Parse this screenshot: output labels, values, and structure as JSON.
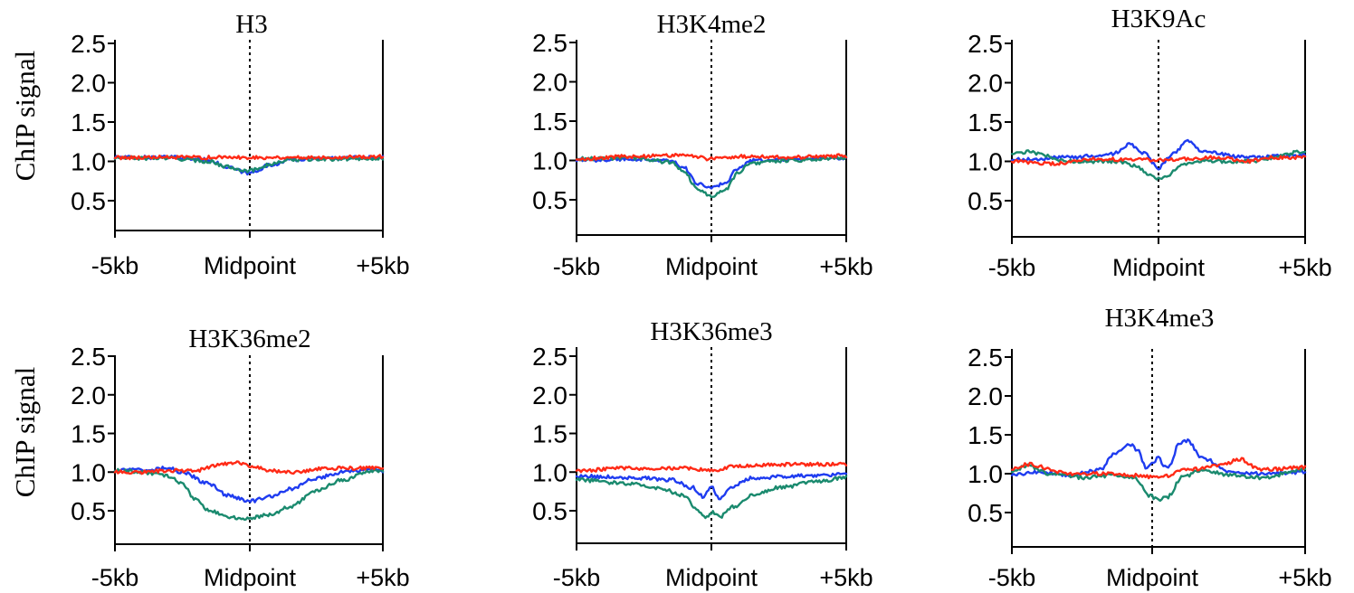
{
  "y_axis_label": "ChIP signal",
  "colors": {
    "blue": "#1f3cf0",
    "green": "#1a8a6e",
    "red": "#ff2a16"
  },
  "chart_data": [
    {
      "type": "line",
      "title": "H3",
      "xlabel": "",
      "ylabel": "ChIP signal",
      "x_ticks": [
        "-5kb",
        "Midpoint",
        "+5kb"
      ],
      "y_ticks": [
        "0.5",
        "1.0",
        "1.5",
        "2.0",
        "2.5"
      ],
      "xlim": [
        -5,
        5
      ],
      "ylim": [
        0.2,
        2.5
      ],
      "midline": 0,
      "series": [
        {
          "color": "blue",
          "points": [
            [
              -5,
              1.05
            ],
            [
              -3,
              1.05
            ],
            [
              -1.5,
              1.02
            ],
            [
              -0.8,
              0.92
            ],
            [
              0,
              0.85
            ],
            [
              0.8,
              0.95
            ],
            [
              1.5,
              1.02
            ],
            [
              3,
              1.04
            ],
            [
              5,
              1.05
            ]
          ]
        },
        {
          "color": "green",
          "points": [
            [
              -5,
              1.04
            ],
            [
              -3,
              1.04
            ],
            [
              -1.5,
              1.0
            ],
            [
              -0.8,
              0.93
            ],
            [
              0,
              0.88
            ],
            [
              0.8,
              0.96
            ],
            [
              1.5,
              1.02
            ],
            [
              3,
              1.03
            ],
            [
              5,
              1.04
            ]
          ]
        },
        {
          "color": "red",
          "points": [
            [
              -5,
              1.05
            ],
            [
              -2,
              1.05
            ],
            [
              0,
              1.05
            ],
            [
              2,
              1.05
            ],
            [
              5,
              1.06
            ]
          ]
        }
      ]
    },
    {
      "type": "line",
      "title": "H3K4me2",
      "xlabel": "",
      "ylabel": "",
      "x_ticks": [
        "-5kb",
        "Midpoint",
        "+5kb"
      ],
      "y_ticks": [
        "0.5",
        "1.0",
        "1.5",
        "2.0",
        "2.5"
      ],
      "xlim": [
        -5,
        5
      ],
      "ylim": [
        0.2,
        2.5
      ],
      "midline": 0,
      "series": [
        {
          "color": "blue",
          "points": [
            [
              -5,
              1.0
            ],
            [
              -3,
              1.02
            ],
            [
              -1.5,
              1.0
            ],
            [
              -1,
              0.9
            ],
            [
              -0.5,
              0.7
            ],
            [
              0,
              0.65
            ],
            [
              0.5,
              0.72
            ],
            [
              1,
              0.9
            ],
            [
              1.5,
              1.0
            ],
            [
              3,
              1.02
            ],
            [
              5,
              1.03
            ]
          ]
        },
        {
          "color": "green",
          "points": [
            [
              -5,
              1.02
            ],
            [
              -3,
              1.03
            ],
            [
              -1.5,
              0.98
            ],
            [
              -1,
              0.85
            ],
            [
              -0.5,
              0.62
            ],
            [
              0,
              0.55
            ],
            [
              0.5,
              0.62
            ],
            [
              1,
              0.85
            ],
            [
              1.5,
              0.97
            ],
            [
              3,
              1.0
            ],
            [
              5,
              1.04
            ]
          ]
        },
        {
          "color": "red",
          "points": [
            [
              -5,
              1.02
            ],
            [
              -3,
              1.05
            ],
            [
              -1,
              1.07
            ],
            [
              0,
              1.02
            ],
            [
              1,
              1.05
            ],
            [
              3,
              1.04
            ],
            [
              5,
              1.06
            ]
          ]
        }
      ]
    },
    {
      "type": "line",
      "title": "H3K9Ac",
      "xlabel": "",
      "ylabel": "",
      "x_ticks": [
        "-5kb",
        "Midpoint",
        "+5kb"
      ],
      "y_ticks": [
        "0.5",
        "1.0",
        "1.5",
        "2.0",
        "2.5"
      ],
      "xlim": [
        -5,
        5
      ],
      "ylim": [
        0.2,
        2.5
      ],
      "midline": 0,
      "series": [
        {
          "color": "blue",
          "points": [
            [
              -5,
              1.02
            ],
            [
              -3,
              1.05
            ],
            [
              -1.5,
              1.1
            ],
            [
              -1,
              1.22
            ],
            [
              -0.5,
              1.1
            ],
            [
              0,
              0.92
            ],
            [
              0.5,
              1.1
            ],
            [
              1,
              1.25
            ],
            [
              1.5,
              1.12
            ],
            [
              3,
              1.05
            ],
            [
              5,
              1.08
            ]
          ]
        },
        {
          "color": "green",
          "points": [
            [
              -5,
              1.1
            ],
            [
              -4.5,
              1.12
            ],
            [
              -3,
              1.0
            ],
            [
              -1.5,
              1.0
            ],
            [
              -0.8,
              0.95
            ],
            [
              -0.3,
              0.82
            ],
            [
              0,
              0.78
            ],
            [
              0.3,
              0.82
            ],
            [
              0.8,
              0.95
            ],
            [
              1.5,
              1.0
            ],
            [
              3,
              1.0
            ],
            [
              5,
              1.12
            ]
          ]
        },
        {
          "color": "red",
          "points": [
            [
              -5,
              1.0
            ],
            [
              -3.5,
              0.97
            ],
            [
              -2,
              1.03
            ],
            [
              -1,
              1.02
            ],
            [
              0,
              1.02
            ],
            [
              1,
              1.03
            ],
            [
              2,
              1.05
            ],
            [
              3,
              1.0
            ],
            [
              4,
              1.05
            ],
            [
              5,
              1.05
            ]
          ]
        }
      ]
    },
    {
      "type": "line",
      "title": "H3K36me2",
      "xlabel": "",
      "ylabel": "ChIP signal",
      "x_ticks": [
        "-5kb",
        "Midpoint",
        "+5kb"
      ],
      "y_ticks": [
        "0.5",
        "1.0",
        "1.5",
        "2.0",
        "2.5"
      ],
      "xlim": [
        -5,
        5
      ],
      "ylim": [
        0.2,
        2.5
      ],
      "midline": 0,
      "series": [
        {
          "color": "blue",
          "points": [
            [
              -5,
              1.02
            ],
            [
              -4,
              1.03
            ],
            [
              -3,
              1.05
            ],
            [
              -2.5,
              1.0
            ],
            [
              -1.5,
              0.85
            ],
            [
              -0.8,
              0.7
            ],
            [
              0,
              0.62
            ],
            [
              0.8,
              0.68
            ],
            [
              1.5,
              0.78
            ],
            [
              2.5,
              0.92
            ],
            [
              3.5,
              1.0
            ],
            [
              4.5,
              1.03
            ],
            [
              5,
              1.02
            ]
          ]
        },
        {
          "color": "green",
          "points": [
            [
              -5,
              1.02
            ],
            [
              -4,
              1.0
            ],
            [
              -3,
              0.95
            ],
            [
              -2.5,
              0.85
            ],
            [
              -2,
              0.65
            ],
            [
              -1.5,
              0.5
            ],
            [
              -0.8,
              0.42
            ],
            [
              0,
              0.4
            ],
            [
              0.8,
              0.45
            ],
            [
              1.5,
              0.55
            ],
            [
              2.5,
              0.75
            ],
            [
              3.5,
              0.9
            ],
            [
              4.5,
              1.0
            ],
            [
              5,
              1.02
            ]
          ]
        },
        {
          "color": "red",
          "points": [
            [
              -5,
              1.0
            ],
            [
              -4,
              1.0
            ],
            [
              -3,
              1.02
            ],
            [
              -2,
              1.02
            ],
            [
              -1,
              1.1
            ],
            [
              -0.5,
              1.12
            ],
            [
              0,
              1.08
            ],
            [
              0.8,
              1.02
            ],
            [
              1.5,
              1.0
            ],
            [
              3,
              1.05
            ],
            [
              4,
              1.05
            ],
            [
              5,
              1.05
            ]
          ]
        }
      ]
    },
    {
      "type": "line",
      "title": "H3K36me3",
      "xlabel": "",
      "ylabel": "",
      "x_ticks": [
        "-5kb",
        "Midpoint",
        "+5kb"
      ],
      "y_ticks": [
        "0.5",
        "1.0",
        "1.5",
        "2.0",
        "2.5"
      ],
      "xlim": [
        -5,
        5
      ],
      "ylim": [
        0.2,
        2.5
      ],
      "midline": 0,
      "series": [
        {
          "color": "blue",
          "points": [
            [
              -5,
              0.95
            ],
            [
              -3,
              0.93
            ],
            [
              -1.5,
              0.9
            ],
            [
              -0.7,
              0.8
            ],
            [
              -0.3,
              0.68
            ],
            [
              0,
              0.82
            ],
            [
              0.3,
              0.65
            ],
            [
              0.8,
              0.82
            ],
            [
              1.5,
              0.92
            ],
            [
              3,
              0.95
            ],
            [
              5,
              0.97
            ]
          ]
        },
        {
          "color": "green",
          "points": [
            [
              -5,
              0.9
            ],
            [
              -3,
              0.85
            ],
            [
              -2,
              0.8
            ],
            [
              -1,
              0.7
            ],
            [
              -0.5,
              0.5
            ],
            [
              -0.2,
              0.42
            ],
            [
              0,
              0.48
            ],
            [
              0.3,
              0.42
            ],
            [
              0.8,
              0.55
            ],
            [
              1.5,
              0.7
            ],
            [
              2.5,
              0.8
            ],
            [
              4,
              0.88
            ],
            [
              5,
              0.93
            ]
          ]
        },
        {
          "color": "red",
          "points": [
            [
              -5,
              1.02
            ],
            [
              -3,
              1.05
            ],
            [
              -1,
              1.05
            ],
            [
              0,
              1.02
            ],
            [
              1,
              1.08
            ],
            [
              3,
              1.1
            ],
            [
              5,
              1.1
            ]
          ]
        }
      ]
    },
    {
      "type": "line",
      "title": "H3K4me3",
      "xlabel": "",
      "ylabel": "",
      "x_ticks": [
        "-5kb",
        "Midpoint",
        "+5kb"
      ],
      "y_ticks": [
        "0.5",
        "1.0",
        "1.5",
        "2.0",
        "2.5"
      ],
      "xlim": [
        -5,
        5
      ],
      "ylim": [
        0.2,
        2.5
      ],
      "midline": 0,
      "series": [
        {
          "color": "blue",
          "points": [
            [
              -5,
              0.98
            ],
            [
              -4,
              1.02
            ],
            [
              -3,
              0.98
            ],
            [
              -2,
              1.05
            ],
            [
              -1.5,
              1.25
            ],
            [
              -1,
              1.38
            ],
            [
              -0.7,
              1.3
            ],
            [
              -0.4,
              1.05
            ],
            [
              -0.2,
              1.15
            ],
            [
              0,
              1.2
            ],
            [
              0.2,
              1.1
            ],
            [
              0.4,
              1.1
            ],
            [
              0.7,
              1.4
            ],
            [
              1,
              1.42
            ],
            [
              1.5,
              1.2
            ],
            [
              2.5,
              1.02
            ],
            [
              3.5,
              1.0
            ],
            [
              5,
              1.02
            ]
          ]
        },
        {
          "color": "green",
          "points": [
            [
              -5,
              1.02
            ],
            [
              -4.5,
              1.1
            ],
            [
              -3.5,
              0.98
            ],
            [
              -2.5,
              0.95
            ],
            [
              -1.5,
              0.98
            ],
            [
              -0.8,
              0.95
            ],
            [
              -0.3,
              0.72
            ],
            [
              0,
              0.66
            ],
            [
              0.3,
              0.7
            ],
            [
              0.8,
              0.95
            ],
            [
              1.5,
              1.05
            ],
            [
              2.5,
              0.98
            ],
            [
              3.5,
              0.95
            ],
            [
              5,
              1.05
            ]
          ]
        },
        {
          "color": "red",
          "points": [
            [
              -5,
              1.05
            ],
            [
              -4.5,
              1.12
            ],
            [
              -3,
              1.0
            ],
            [
              -2,
              1.0
            ],
            [
              -1,
              0.98
            ],
            [
              0,
              0.95
            ],
            [
              1,
              1.05
            ],
            [
              2,
              1.1
            ],
            [
              2.8,
              1.18
            ],
            [
              3.5,
              1.05
            ],
            [
              5,
              1.08
            ]
          ]
        }
      ]
    }
  ]
}
